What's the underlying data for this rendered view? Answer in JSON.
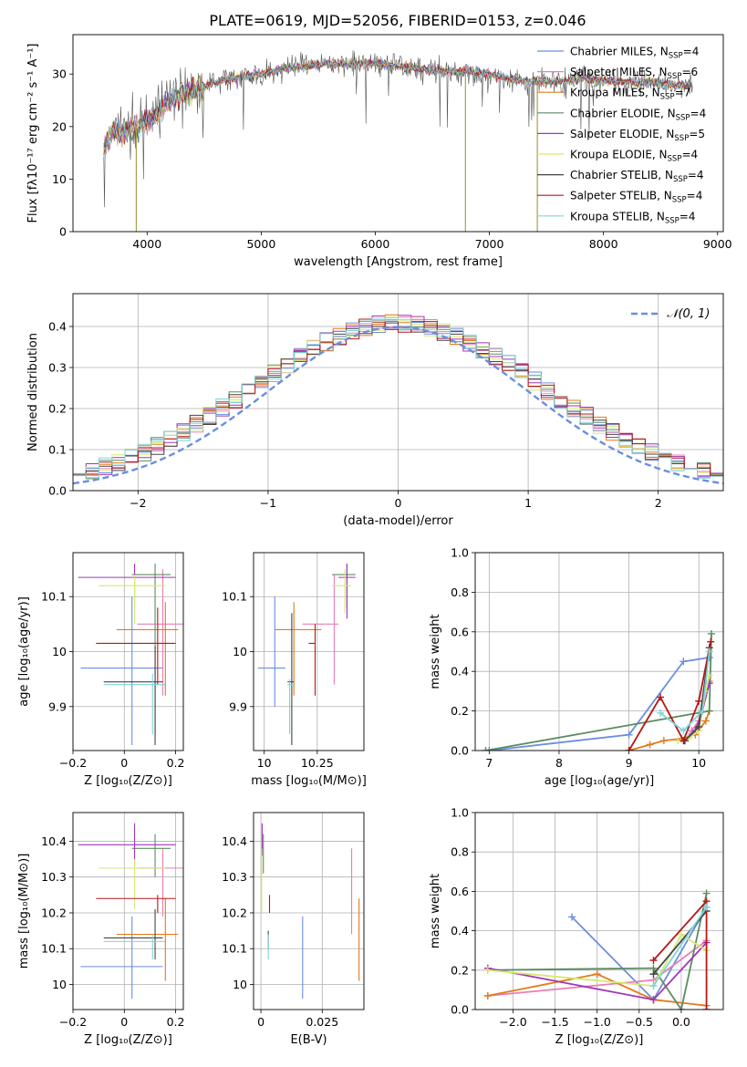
{
  "figure_title": "PLATE=0619, MJD=52056, FIBERID=0153, z=0.046",
  "colors": {
    "Chabrier MILES": "#6a8ee0",
    "Salpeter MILES": "#e87fb3",
    "Kroupa MILES": "#e27b1c",
    "Chabrier ELODIE": "#5e8c60",
    "Salpeter ELODIE": "#a035b8",
    "Kroupa ELODIE": "#d6e874",
    "Chabrier STELIB": "#444444",
    "Salpeter STELIB": "#b51818",
    "Kroupa STELIB": "#7fd3d9"
  },
  "chart_data": [
    {
      "id": "spectrum",
      "type": "line",
      "xlabel": "wavelength [Angstrom, rest frame]",
      "ylabel": "Flux [fλ10⁻¹⁷ erg cm⁻² s⁻¹ A⁻¹]",
      "xlim": [
        3350,
        9050
      ],
      "ylim": [
        0,
        37.5
      ],
      "xticks": [
        4000,
        5000,
        6000,
        7000,
        8000,
        9000
      ],
      "yticks": [
        0,
        10,
        20,
        30
      ],
      "legend_position": "upper-right",
      "legend": [
        {
          "name": "Chabrier MILES",
          "nssp": "4"
        },
        {
          "name": "Salpeter MILES",
          "nssp": "6"
        },
        {
          "name": "Kroupa MILES",
          "nssp": "7"
        },
        {
          "name": "Chabrier ELODIE",
          "nssp": "4"
        },
        {
          "name": "Salpeter ELODIE",
          "nssp": "5"
        },
        {
          "name": "Kroupa ELODIE",
          "nssp": "4"
        },
        {
          "name": "Chabrier STELIB",
          "nssp": "4"
        },
        {
          "name": "Salpeter STELIB",
          "nssp": "4"
        },
        {
          "name": "Kroupa STELIB",
          "nssp": "4"
        }
      ],
      "continuum": [
        [
          3620,
          16
        ],
        [
          3700,
          19
        ],
        [
          3800,
          19
        ],
        [
          3900,
          20
        ],
        [
          4000,
          21
        ],
        [
          4100,
          23
        ],
        [
          4200,
          25
        ],
        [
          4300,
          26
        ],
        [
          4400,
          26.5
        ],
        [
          4500,
          27.5
        ],
        [
          4600,
          28.5
        ],
        [
          4700,
          29
        ],
        [
          4800,
          29.5
        ],
        [
          5000,
          30
        ],
        [
          5200,
          31
        ],
        [
          5400,
          31.5
        ],
        [
          5600,
          32
        ],
        [
          5800,
          32
        ],
        [
          6000,
          32
        ],
        [
          6200,
          31.5
        ],
        [
          6400,
          31
        ],
        [
          6600,
          30.5
        ],
        [
          6800,
          30.5
        ],
        [
          7000,
          30
        ],
        [
          7200,
          29
        ],
        [
          7400,
          28.5
        ],
        [
          7600,
          28.5
        ],
        [
          7800,
          29
        ],
        [
          8000,
          28.8
        ],
        [
          8200,
          28.5
        ],
        [
          8400,
          28.5
        ],
        [
          8600,
          28
        ],
        [
          8780,
          28
        ]
      ],
      "drops": [
        {
          "x": 3905,
          "y": 0
        },
        {
          "x": 6790,
          "y": 0
        },
        {
          "x": 7420,
          "y": 0
        }
      ]
    },
    {
      "id": "residuals",
      "type": "histogram",
      "xlabel": "(data-model)/error",
      "ylabel": "Normed distribution",
      "xlim": [
        -2.5,
        2.5
      ],
      "ylim": [
        0,
        0.48
      ],
      "xticks": [
        -2,
        -1,
        0,
        1,
        2
      ],
      "yticks": [
        0.0,
        0.1,
        0.2,
        0.3,
        0.4
      ],
      "bin_width": 0.1,
      "gaussian_label": "𝒩(0, 1)",
      "legend_position": "upper-right"
    },
    {
      "id": "age-Z",
      "type": "errorbar",
      "xlabel": "Z [log₁₀(Z/Z⊙)]",
      "ylabel": "age  [log₁₀(age/yr)]",
      "xlim": [
        -0.2,
        0.23
      ],
      "ylim": [
        9.82,
        10.18
      ],
      "xticks": [
        -0.2,
        0.0,
        0.2
      ],
      "yticks": [
        9.9,
        10.0,
        10.1
      ],
      "points": [
        {
          "s": "Chabrier MILES",
          "x": 0.03,
          "xe": [
            -0.17,
            0.15
          ],
          "y": 9.97,
          "ye": [
            9.83,
            10.1
          ]
        },
        {
          "s": "Salpeter MILES",
          "x": 0.15,
          "xe": [
            0.05,
            0.23
          ],
          "y": 10.05,
          "ye": [
            9.92,
            10.15
          ]
        },
        {
          "s": "Kroupa MILES",
          "x": 0.16,
          "xe": [
            -0.03,
            0.21
          ],
          "y": 10.04,
          "ye": [
            9.92,
            10.09
          ]
        },
        {
          "s": "Chabrier ELODIE",
          "x": 0.12,
          "xe": [
            0.03,
            0.18
          ],
          "y": 10.14,
          "ye": [
            9.85,
            10.16
          ]
        },
        {
          "s": "Salpeter ELODIE",
          "x": 0.04,
          "xe": [
            -0.18,
            0.2
          ],
          "y": 10.135,
          "ye": [
            10.08,
            10.16
          ]
        },
        {
          "s": "Kroupa ELODIE",
          "x": 0.04,
          "xe": [
            -0.1,
            0.16
          ],
          "y": 10.12,
          "ye": [
            10.05,
            10.14
          ]
        },
        {
          "s": "Chabrier STELIB",
          "x": 0.12,
          "xe": [
            -0.08,
            0.15
          ],
          "y": 9.945,
          "ye": [
            9.83,
            10.01
          ]
        },
        {
          "s": "Salpeter STELIB",
          "x": 0.13,
          "xe": [
            -0.11,
            0.2
          ],
          "y": 10.015,
          "ye": [
            9.94,
            10.08
          ]
        },
        {
          "s": "Kroupa STELIB",
          "x": 0.11,
          "xe": [
            -0.08,
            0.16
          ],
          "y": 9.94,
          "ye": [
            9.85,
            9.96
          ]
        }
      ]
    },
    {
      "id": "age-mass",
      "type": "errorbar",
      "xlabel": "mass [log₁₀(M/M⊙)]",
      "ylabel": "",
      "xlim": [
        9.95,
        10.47
      ],
      "ylim": [
        9.82,
        10.18
      ],
      "xticks": [
        10.0,
        10.25
      ],
      "yticks": [
        9.9,
        10.0,
        10.1
      ],
      "points": [
        {
          "s": "Chabrier MILES",
          "x": 10.05,
          "xe": [
            9.97,
            10.1
          ],
          "y": 9.97,
          "ye": [
            9.9,
            10.1
          ]
        },
        {
          "s": "Salpeter MILES",
          "x": 10.33,
          "xe": [
            10.18,
            10.35
          ],
          "y": 10.05,
          "ye": [
            9.94,
            10.14
          ]
        },
        {
          "s": "Kroupa MILES",
          "x": 10.14,
          "xe": [
            10.05,
            10.27
          ],
          "y": 10.04,
          "ye": [
            9.92,
            10.09
          ]
        },
        {
          "s": "Chabrier ELODIE",
          "x": 10.39,
          "xe": [
            10.32,
            10.43
          ],
          "y": 10.14,
          "ye": [
            10.08,
            10.16
          ]
        },
        {
          "s": "Salpeter ELODIE",
          "x": 10.39,
          "xe": [
            10.35,
            10.43
          ],
          "y": 10.135,
          "ye": [
            10.06,
            10.16
          ]
        },
        {
          "s": "Kroupa ELODIE",
          "x": 10.38,
          "xe": [
            10.32,
            10.41
          ],
          "y": 10.12,
          "ye": [
            10.07,
            10.15
          ]
        },
        {
          "s": "Chabrier STELIB",
          "x": 10.13,
          "xe": [
            10.11,
            10.14
          ],
          "y": 9.945,
          "ye": [
            9.83,
            10.07
          ]
        },
        {
          "s": "Salpeter STELIB",
          "x": 10.24,
          "xe": [
            10.21,
            10.24
          ],
          "y": 10.015,
          "ye": [
            9.92,
            10.05
          ]
        },
        {
          "s": "Kroupa STELIB",
          "x": 10.12,
          "xe": [
            10.11,
            10.14
          ],
          "y": 9.94,
          "ye": [
            9.85,
            9.95
          ]
        }
      ]
    },
    {
      "id": "weight-age",
      "type": "line",
      "xlabel": "age  [log₁₀(age/yr)]",
      "ylabel": "mass weight",
      "xlim": [
        6.8,
        10.35
      ],
      "ylim": [
        0,
        1
      ],
      "xticks": [
        7,
        8,
        9,
        10
      ],
      "yticks": [
        0.0,
        0.2,
        0.4,
        0.6,
        0.8,
        1.0
      ],
      "series": [
        {
          "s": "Chabrier MILES",
          "x": [
            7.0,
            9.0,
            9.78,
            10.15
          ],
          "y": [
            0.0,
            0.08,
            0.45,
            0.47
          ]
        },
        {
          "s": "Salpeter MILES",
          "x": [
            9.8,
            9.9,
            10.0,
            10.1,
            10.15
          ],
          "y": [
            0.05,
            0.1,
            0.15,
            0.3,
            0.35
          ]
        },
        {
          "s": "Kroupa MILES",
          "x": [
            9.0,
            9.3,
            9.5,
            9.75,
            9.95,
            10.1,
            10.15
          ],
          "y": [
            0.0,
            0.03,
            0.05,
            0.06,
            0.08,
            0.15,
            0.2
          ]
        },
        {
          "s": "Chabrier ELODIE",
          "x": [
            6.95,
            10.15,
            10.18
          ],
          "y": [
            0.0,
            0.2,
            0.59
          ]
        },
        {
          "s": "Salpeter ELODIE",
          "x": [
            9.8,
            9.95,
            10.05,
            10.15
          ],
          "y": [
            0.05,
            0.1,
            0.2,
            0.34
          ]
        },
        {
          "s": "Kroupa ELODIE",
          "x": [
            9.7,
            9.85,
            10.0,
            10.1,
            10.15
          ],
          "y": [
            0.05,
            0.06,
            0.1,
            0.3,
            0.38
          ]
        },
        {
          "s": "Chabrier STELIB",
          "x": [
            9.8,
            10.0,
            10.15
          ],
          "y": [
            0.05,
            0.12,
            0.52
          ]
        },
        {
          "s": "Salpeter STELIB",
          "x": [
            9.0,
            9.45,
            9.78,
            10.0,
            10.17
          ],
          "y": [
            0.0,
            0.27,
            0.05,
            0.25,
            0.55
          ]
        },
        {
          "s": "Kroupa STELIB",
          "x": [
            9.45,
            9.78,
            10.05,
            10.15
          ],
          "y": [
            0.19,
            0.1,
            0.2,
            0.5
          ]
        }
      ]
    },
    {
      "id": "mass-Z",
      "type": "errorbar",
      "xlabel": "Z [log₁₀(Z/Z⊙)]",
      "ylabel": "mass [log₁₀(M/M⊙)]",
      "xlim": [
        -0.2,
        0.23
      ],
      "ylim": [
        9.93,
        10.48
      ],
      "xticks": [
        -0.2,
        0.0,
        0.2
      ],
      "yticks": [
        10.0,
        10.1,
        10.2,
        10.3,
        10.4
      ],
      "points": [
        {
          "s": "Chabrier MILES",
          "x": 0.03,
          "xe": [
            -0.17,
            0.15
          ],
          "y": 10.05,
          "ye": [
            9.96,
            10.19
          ]
        },
        {
          "s": "Salpeter MILES",
          "x": 0.15,
          "xe": [
            0.05,
            0.23
          ],
          "y": 10.325,
          "ye": [
            10.19,
            10.38
          ]
        },
        {
          "s": "Kroupa MILES",
          "x": 0.16,
          "xe": [
            -0.03,
            0.21
          ],
          "y": 10.14,
          "ye": [
            10.01,
            10.24
          ]
        },
        {
          "s": "Chabrier ELODIE",
          "x": 0.12,
          "xe": [
            0.03,
            0.18
          ],
          "y": 10.38,
          "ye": [
            10.3,
            10.42
          ]
        },
        {
          "s": "Salpeter ELODIE",
          "x": 0.04,
          "xe": [
            -0.18,
            0.2
          ],
          "y": 10.39,
          "ye": [
            10.33,
            10.45
          ]
        },
        {
          "s": "Kroupa ELODIE",
          "x": 0.04,
          "xe": [
            -0.1,
            0.16
          ],
          "y": 10.325,
          "ye": [
            10.21,
            10.35
          ]
        },
        {
          "s": "Chabrier STELIB",
          "x": 0.12,
          "xe": [
            -0.08,
            0.15
          ],
          "y": 10.13,
          "ye": [
            10.07,
            10.21
          ]
        },
        {
          "s": "Salpeter STELIB",
          "x": 0.13,
          "xe": [
            -0.11,
            0.2
          ],
          "y": 10.24,
          "ye": [
            10.2,
            10.25
          ]
        },
        {
          "s": "Kroupa STELIB",
          "x": 0.11,
          "xe": [
            -0.08,
            0.16
          ],
          "y": 10.12,
          "ye": [
            10.07,
            10.14
          ]
        }
      ]
    },
    {
      "id": "mass-ebv",
      "type": "errorbar",
      "xlabel": "E(B-V)",
      "ylabel": "",
      "xlim": [
        -0.003,
        0.042
      ],
      "ylim": [
        9.93,
        10.48
      ],
      "xticks": [
        0.0,
        0.025
      ],
      "yticks": [
        10.0,
        10.1,
        10.2,
        10.3,
        10.4
      ],
      "points": [
        {
          "s": "Chabrier MILES",
          "x": 0.017,
          "y": 10.05,
          "ye": [
            9.96,
            10.19
          ]
        },
        {
          "s": "Salpeter MILES",
          "x": 0.037,
          "y": 10.26,
          "ye": [
            10.14,
            10.38
          ]
        },
        {
          "s": "Kroupa MILES",
          "x": 0.04,
          "y": 10.12,
          "ye": [
            10.01,
            10.24
          ]
        },
        {
          "s": "Chabrier ELODIE",
          "x": 0.001,
          "y": 10.38,
          "ye": [
            10.31,
            10.42
          ]
        },
        {
          "s": "Salpeter ELODIE",
          "x": 0.0005,
          "y": 10.41,
          "ye": [
            10.36,
            10.45
          ]
        },
        {
          "s": "Kroupa ELODIE",
          "x": 0.0003,
          "y": 10.3,
          "ye": [
            10.2,
            10.38
          ]
        },
        {
          "s": "Chabrier STELIB",
          "x": 0.003,
          "y": 10.12,
          "ye": [
            10.1,
            10.15
          ]
        },
        {
          "s": "Salpeter STELIB",
          "x": 0.0035,
          "y": 10.22,
          "ye": [
            10.2,
            10.25
          ]
        },
        {
          "s": "Kroupa STELIB",
          "x": 0.003,
          "y": 10.1,
          "ye": [
            10.07,
            10.14
          ]
        }
      ]
    },
    {
      "id": "weight-Z",
      "type": "line",
      "xlabel": "Z [log₁₀(Z/Z⊙)]",
      "ylabel": "mass weight",
      "xlim": [
        -2.45,
        0.5
      ],
      "ylim": [
        0,
        1
      ],
      "xticks": [
        -2.0,
        -1.5,
        -1.0,
        -0.5,
        0.0
      ],
      "xticklabels": [
        "−2.0",
        "−1.5",
        "−1.0",
        "−0.5",
        "0.0"
      ],
      "yticks": [
        0.0,
        0.2,
        0.4,
        0.6,
        0.8,
        1.0
      ],
      "series": [
        {
          "s": "Chabrier MILES",
          "x": [
            -1.3,
            -0.33,
            0.3
          ],
          "y": [
            0.47,
            0.05,
            0.52
          ]
        },
        {
          "s": "Salpeter MILES",
          "x": [
            -2.3,
            -0.33,
            0.3
          ],
          "y": [
            0.07,
            0.15,
            0.35
          ]
        },
        {
          "s": "Kroupa MILES",
          "x": [
            -2.3,
            -1.0,
            -0.33,
            0.3
          ],
          "y": [
            0.07,
            0.18,
            0.05,
            0.02
          ]
        },
        {
          "s": "Chabrier ELODIE",
          "x": [
            -2.3,
            -0.33,
            0.0,
            0.3
          ],
          "y": [
            0.2,
            0.21,
            0.0,
            0.59
          ]
        },
        {
          "s": "Salpeter ELODIE",
          "x": [
            -2.3,
            -0.33,
            0.3
          ],
          "y": [
            0.21,
            0.05,
            0.34
          ]
        },
        {
          "s": "Kroupa ELODIE",
          "x": [
            -2.3,
            -0.33,
            0.0,
            0.3
          ],
          "y": [
            0.2,
            0.12,
            0.38,
            0.3
          ]
        },
        {
          "s": "Chabrier STELIB",
          "x": [
            -0.33,
            0.3
          ],
          "y": [
            0.18,
            0.5
          ]
        },
        {
          "s": "Salpeter STELIB",
          "x": [
            -0.33,
            0.3,
            0.3
          ],
          "y": [
            0.25,
            0.55,
            0.0
          ]
        },
        {
          "s": "Kroupa STELIB",
          "x": [
            -0.33,
            0.3
          ],
          "y": [
            0.12,
            0.52
          ]
        }
      ]
    }
  ]
}
